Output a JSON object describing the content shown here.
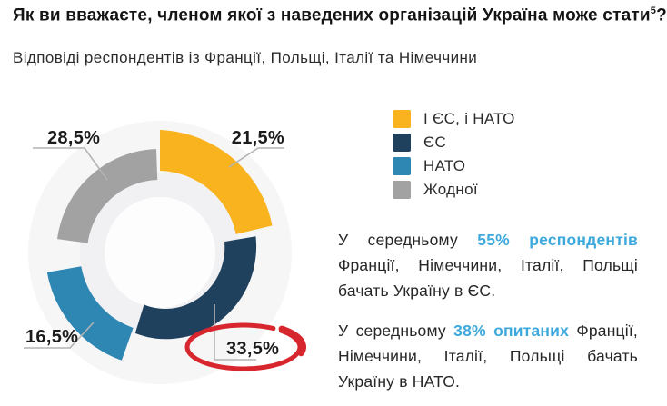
{
  "title": {
    "text": "Як ви вважаєте, членом якої з наведених організацій Україна може стати",
    "superscript": "5",
    "suffix": "?"
  },
  "subtitle": "Відповіді респондентів із Франції, Польщі, Італії та Німеччини",
  "chart_data": {
    "type": "pie",
    "variant": "staggered-donut",
    "categories": [
      "І ЄС, і НАТО",
      "ЄС",
      "НАТО",
      "Жодної"
    ],
    "values": [
      21.5,
      33.5,
      16.5,
      28.5
    ],
    "unit": "%",
    "labels": [
      "21,5%",
      "33,5%",
      "16,5%",
      "28,5%"
    ],
    "colors": [
      "#f9b31f",
      "#1f415d",
      "#2e86b3",
      "#a2a2a2"
    ],
    "start_angle": "12-o-clock",
    "direction": "clockwise",
    "annotation": {
      "type": "hand-drawn-ellipse",
      "around_label": "33,5%",
      "color": "#d7262e"
    }
  },
  "legend": {
    "items": [
      {
        "label": "І ЄС, і НАТО",
        "color": "#f9b31f"
      },
      {
        "label": "ЄС",
        "color": "#1f415d"
      },
      {
        "label": "НАТО",
        "color": "#2e86b3"
      },
      {
        "label": "Жодної",
        "color": "#a2a2a2"
      }
    ]
  },
  "insights": [
    {
      "pre": "У середньому ",
      "highlight": "55% респондентів",
      "post": " Франції, Німеччини, Італії, Польщі бачать Україну в ЄС."
    },
    {
      "pre": "У середньому ",
      "highlight": "38% опитаних",
      "post": " Франції, Німеччини, Італії, Польщі бачать Україну в НАТО."
    }
  ],
  "highlight_color": "#3ea9dc"
}
